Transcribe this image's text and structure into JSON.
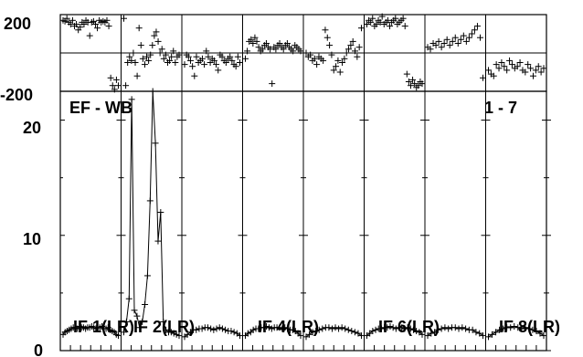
{
  "chart_data": {
    "type": "scatter",
    "title": "",
    "annotations": {
      "baseline": "EF - WB",
      "channel_range": "1 - 7"
    },
    "phase_panel": {
      "ylim": [
        -200,
        200
      ],
      "tick_labels": [
        "200",
        "-200"
      ]
    },
    "amplitude_panel": {
      "ylim": [
        0,
        22.5
      ],
      "tick_labels": [
        "20",
        "10",
        "0"
      ]
    },
    "if_labels": [
      "IF 1(LR)",
      "IF 2(LR)",
      "IF 4(LR)",
      "IF 6(LR)",
      "IF 8(LR)"
    ],
    "series": [
      {
        "if": 1,
        "phase": [
          170,
          165,
          180,
          160,
          150,
          170,
          140,
          150,
          120,
          135,
          160,
          150,
          170,
          160,
          90,
          160,
          165,
          150,
          130,
          170,
          160,
          165,
          160,
          170,
          140,
          -130,
          -170,
          -190,
          -140,
          -170
        ],
        "amplitude": [
          1.4,
          1.6,
          1.7,
          1.8,
          1.9,
          2.0,
          2.0,
          1.9,
          2.1,
          2.0,
          2.0,
          1.9,
          2.0,
          2.0,
          2.1,
          2.0,
          1.9,
          2.0,
          2.0,
          2.1,
          1.9,
          1.9,
          2.0,
          1.8,
          1.7,
          1.6,
          1.4,
          1.3
        ]
      },
      {
        "if": 2,
        "phase": [
          180,
          -170,
          -50,
          -20,
          -40,
          0,
          -50,
          -120,
          130,
          40,
          -30,
          -60,
          -20,
          -40,
          -10,
          40,
          90,
          110,
          60,
          0,
          20,
          -30,
          -10,
          -50,
          -40,
          -20,
          10,
          -50,
          -20,
          -10
        ],
        "amplitude": [
          1.6,
          2.5,
          4.5,
          21.8,
          3.5,
          3.0,
          2.0,
          2.5,
          4.0,
          6.5,
          13.0,
          22.5,
          18.0,
          9.5,
          12.0,
          2.5,
          1.8,
          1.6,
          1.6,
          1.5,
          1.4,
          1.3
        ]
      },
      {
        "if": 3,
        "phase": [
          -60,
          -10,
          -20,
          -40,
          -70,
          -120,
          -20,
          -50,
          -40,
          -30,
          -60,
          10,
          -20,
          -50,
          -30,
          -40,
          -60,
          -90,
          -10,
          -20,
          -40,
          -50,
          -30,
          -20,
          -40,
          -60,
          -70,
          -20,
          -50
        ],
        "amplitude": [
          1.2,
          1.4,
          1.6,
          1.8,
          1.8,
          1.9,
          1.9,
          2.0,
          2.0,
          1.9,
          1.8,
          1.9,
          2.0,
          1.9,
          1.8,
          1.7,
          1.7,
          1.6,
          1.5,
          1.3
        ]
      },
      {
        "if": 4,
        "phase": [
          -30,
          10,
          60,
          70,
          50,
          80,
          60,
          30,
          10,
          20,
          40,
          50,
          30,
          20,
          -160,
          30,
          20,
          40,
          50,
          30,
          20,
          40,
          50,
          30,
          20,
          10,
          40,
          30,
          20,
          10
        ],
        "amplitude": [
          1.3,
          1.5,
          1.6,
          1.8,
          1.9,
          1.9,
          2.0,
          2.0,
          2.1,
          2.0,
          1.9,
          2.0,
          2.0,
          2.0,
          1.9,
          2.0,
          1.9,
          1.8,
          1.8,
          1.7,
          1.5,
          1.3
        ]
      },
      {
        "if": 5,
        "phase": [
          0,
          -20,
          -10,
          -40,
          -30,
          -60,
          -20,
          -30,
          -40,
          120,
          80,
          40,
          -10,
          -90,
          -70,
          -40,
          -100,
          -50,
          -30,
          0,
          20,
          40,
          60,
          10,
          -20,
          30,
          130
        ],
        "amplitude": [
          1.2,
          1.4,
          1.6,
          1.7,
          1.8,
          1.9,
          2.0,
          2.0,
          1.9,
          2.0,
          1.9,
          2.0,
          1.9,
          1.8,
          1.7,
          1.6,
          1.5,
          1.3
        ]
      },
      {
        "if": 6,
        "phase": [
          150,
          170,
          160,
          180,
          140,
          150,
          170,
          160,
          190,
          150,
          160,
          170,
          140,
          160,
          170,
          180,
          150,
          160,
          170,
          180,
          140,
          -110,
          -150,
          -170,
          -140,
          -160,
          -180,
          -170,
          -150,
          -160
        ],
        "amplitude": [
          1.3,
          1.5,
          1.7,
          1.8,
          1.9,
          1.9,
          2.0,
          2.0,
          2.1,
          2.0,
          1.9,
          2.0,
          2.0,
          1.9,
          2.0,
          1.9,
          1.8,
          1.7,
          1.6,
          1.4
        ]
      },
      {
        "if": 7,
        "phase": [
          30,
          20,
          50,
          40,
          60,
          30,
          50,
          70,
          40,
          60,
          80,
          50,
          70,
          90,
          60,
          80,
          100,
          120,
          140,
          80,
          -130
        ],
        "amplitude": [
          1.3,
          1.5,
          1.6,
          1.8,
          1.9,
          2.0,
          1.9,
          2.0,
          2.0,
          1.9,
          2.0,
          1.9,
          1.8,
          1.8,
          1.6,
          1.5,
          1.3
        ]
      },
      {
        "if": 8,
        "phase": [
          -90,
          -110,
          -120,
          -60,
          -80,
          -50,
          -70,
          -90,
          -40,
          -60,
          -80,
          -70,
          -50,
          -90,
          -100,
          -60,
          -80,
          -120,
          -90,
          -70,
          -100,
          -80
        ],
        "amplitude": [
          1.2,
          1.4,
          1.6,
          1.8,
          1.9,
          2.0,
          2.0,
          2.1,
          2.0,
          1.9,
          2.0,
          1.9,
          1.8,
          1.7,
          1.5,
          1.3
        ]
      }
    ]
  }
}
